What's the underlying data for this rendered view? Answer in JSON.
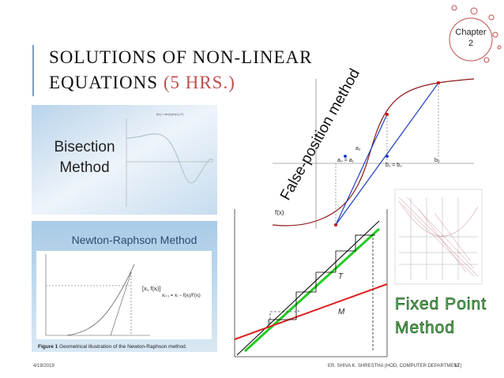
{
  "chapter": {
    "label": "Chapter",
    "number": "2"
  },
  "title": {
    "line1": "SOLUTIONS OF NON-LINEAR",
    "line2": "EQUATIONS",
    "hours": "(5 HRS.)"
  },
  "bisection": {
    "line1": "Bisection",
    "line2": "Method",
    "plot_title": "f(x) = sin(x)exp(-x²)"
  },
  "newton": {
    "title": "Newton-Raphson Method",
    "point": "[xᵢ, f(xᵢ)]",
    "formula": "xᵢ₊₁ = xᵢ − f(xᵢ)/f′(xᵢ)",
    "caption_bold": "Figure 1",
    "caption": "Geometrical illustration of the Newton-Raphson method."
  },
  "false_position": {
    "title": "False-position method",
    "fx": "f(x)",
    "a2": "a₂",
    "a0a1": "a₀ = a₁",
    "b1b2": "b₁ = b₂",
    "b0": "b₀"
  },
  "fixed_point": {
    "line1": "Fixed Point",
    "line2": "Method",
    "t": "T",
    "m": "M"
  },
  "footer": {
    "date": "4/19/2019",
    "author": "ER. SHIVA K. SHRESTHA (HOD, COMPUTER DEPARTMENT)",
    "page": "12"
  }
}
